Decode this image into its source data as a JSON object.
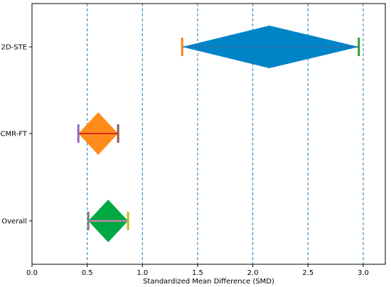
{
  "chart_data": {
    "type": "forest",
    "xlabel": "Standardized Mean Difference (SMD)",
    "xlim": [
      0.0,
      3.2
    ],
    "x_ticks": [
      0.0,
      0.5,
      1.0,
      1.5,
      2.0,
      2.5,
      3.0
    ],
    "x_tick_labels": [
      "0.0",
      "0.5",
      "1.0",
      "1.5",
      "2.0",
      "2.5",
      "3.0"
    ],
    "grid_x": [
      0.5,
      1.0,
      1.5,
      2.0,
      2.5,
      3.0
    ],
    "grid_style": "dashed",
    "grid_color": "#1f77b4",
    "rows": [
      {
        "label": "2D-STE",
        "estimate": 2.15,
        "ci_low": 1.36,
        "ci_high": 2.96,
        "diamond_color": "#0084c8",
        "line_color": "#1f77b4",
        "low_cap_color": "#ff7f0e",
        "high_cap_color": "#2ca02c"
      },
      {
        "label": "CMR-FT",
        "estimate": 0.6,
        "ci_low": 0.42,
        "ci_high": 0.78,
        "diamond_color": "#ff8c1a",
        "line_color": "#d62728",
        "low_cap_color": "#9467bd",
        "high_cap_color": "#8c564b"
      },
      {
        "label": "Overall",
        "estimate": 0.69,
        "ci_low": 0.51,
        "ci_high": 0.87,
        "diamond_color": "#00a844",
        "line_color": "#e377c2",
        "low_cap_color": "#7f7f7f",
        "high_cap_color": "#bcbd22"
      }
    ]
  }
}
